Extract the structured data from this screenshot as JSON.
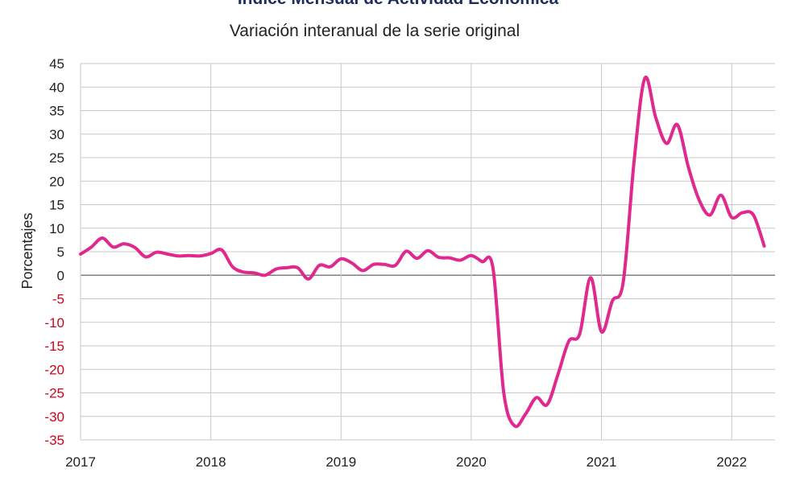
{
  "chart_data": {
    "type": "line",
    "title": "Índice Mensual de Actividad Económica",
    "subtitle": "Variación interanual de la serie original",
    "xlabel": "",
    "ylabel": "Porcentajes",
    "ylim": [
      -35,
      45
    ],
    "yticks": [
      45,
      40,
      35,
      30,
      25,
      20,
      15,
      10,
      5,
      0,
      -5,
      -10,
      -15,
      -20,
      -25,
      -30,
      -35
    ],
    "xticks": [
      "2017",
      "2018",
      "2019",
      "2020",
      "2021",
      "2022"
    ],
    "grid": true,
    "colors": {
      "line": "#e0288f",
      "negative_tick": "#d0021b",
      "positive_tick": "#222222",
      "zero_line": "#7f7f7f",
      "grid": "#c8c8c8"
    },
    "series": [
      {
        "values": [
          {
            "t": 2017.0,
            "y": 4.5
          },
          {
            "t": 2017.083,
            "y": 6.0
          },
          {
            "t": 2017.167,
            "y": 7.9
          },
          {
            "t": 2017.25,
            "y": 6.0
          },
          {
            "t": 2017.333,
            "y": 6.7
          },
          {
            "t": 2017.417,
            "y": 5.9
          },
          {
            "t": 2017.5,
            "y": 3.9
          },
          {
            "t": 2017.583,
            "y": 4.9
          },
          {
            "t": 2017.667,
            "y": 4.5
          },
          {
            "t": 2017.75,
            "y": 4.1
          },
          {
            "t": 2017.833,
            "y": 4.2
          },
          {
            "t": 2017.917,
            "y": 4.1
          },
          {
            "t": 2018.0,
            "y": 4.6
          },
          {
            "t": 2018.083,
            "y": 5.4
          },
          {
            "t": 2018.167,
            "y": 1.8
          },
          {
            "t": 2018.25,
            "y": 0.7
          },
          {
            "t": 2018.333,
            "y": 0.5
          },
          {
            "t": 2018.417,
            "y": 0.0
          },
          {
            "t": 2018.5,
            "y": 1.3
          },
          {
            "t": 2018.583,
            "y": 1.6
          },
          {
            "t": 2018.667,
            "y": 1.6
          },
          {
            "t": 2018.75,
            "y": -0.8
          },
          {
            "t": 2018.833,
            "y": 2.1
          },
          {
            "t": 2018.917,
            "y": 1.8
          },
          {
            "t": 2019.0,
            "y": 3.5
          },
          {
            "t": 2019.083,
            "y": 2.6
          },
          {
            "t": 2019.167,
            "y": 1.0
          },
          {
            "t": 2019.25,
            "y": 2.3
          },
          {
            "t": 2019.333,
            "y": 2.3
          },
          {
            "t": 2019.417,
            "y": 2.1
          },
          {
            "t": 2019.5,
            "y": 5.1
          },
          {
            "t": 2019.583,
            "y": 3.6
          },
          {
            "t": 2019.667,
            "y": 5.2
          },
          {
            "t": 2019.75,
            "y": 3.8
          },
          {
            "t": 2019.833,
            "y": 3.7
          },
          {
            "t": 2019.917,
            "y": 3.2
          },
          {
            "t": 2020.0,
            "y": 4.2
          },
          {
            "t": 2020.083,
            "y": 2.9
          },
          {
            "t": 2020.167,
            "y": 1.5
          },
          {
            "t": 2020.25,
            "y": -25.0
          },
          {
            "t": 2020.333,
            "y": -32.0
          },
          {
            "t": 2020.417,
            "y": -29.5
          },
          {
            "t": 2020.5,
            "y": -26.0
          },
          {
            "t": 2020.583,
            "y": -27.5
          },
          {
            "t": 2020.667,
            "y": -21.0
          },
          {
            "t": 2020.75,
            "y": -14.0
          },
          {
            "t": 2020.833,
            "y": -12.5
          },
          {
            "t": 2020.917,
            "y": -0.5
          },
          {
            "t": 2021.0,
            "y": -12.0
          },
          {
            "t": 2021.083,
            "y": -5.5
          },
          {
            "t": 2021.167,
            "y": -1.5
          },
          {
            "t": 2021.25,
            "y": 24.0
          },
          {
            "t": 2021.333,
            "y": 41.9
          },
          {
            "t": 2021.417,
            "y": 33.5
          },
          {
            "t": 2021.5,
            "y": 28.0
          },
          {
            "t": 2021.583,
            "y": 32.0
          },
          {
            "t": 2021.667,
            "y": 23.0
          },
          {
            "t": 2021.75,
            "y": 16.0
          },
          {
            "t": 2021.833,
            "y": 12.8
          },
          {
            "t": 2021.917,
            "y": 17.0
          },
          {
            "t": 2022.0,
            "y": 12.3
          },
          {
            "t": 2022.083,
            "y": 13.3
          },
          {
            "t": 2022.167,
            "y": 12.8
          },
          {
            "t": 2022.25,
            "y": 6.2
          }
        ]
      }
    ]
  }
}
